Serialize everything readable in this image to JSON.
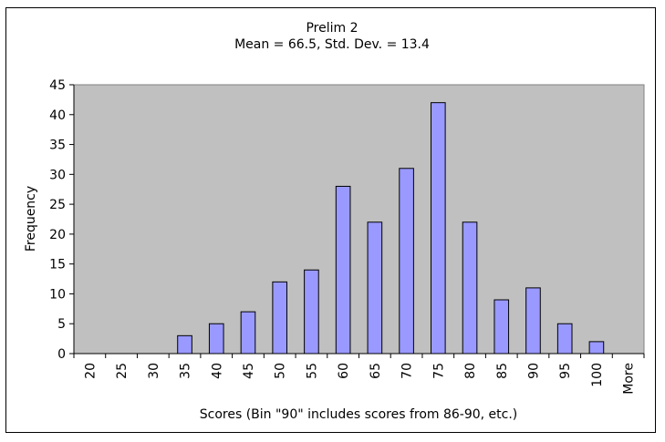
{
  "chart_data": {
    "type": "bar",
    "title": "Prelim 2",
    "subtitle": "Mean = 66.5, Std. Dev. = 13.4",
    "xlabel": "Scores (Bin \"90\" includes scores from 86-90, etc.)",
    "ylabel": "Frequency",
    "categories": [
      "20",
      "25",
      "30",
      "35",
      "40",
      "45",
      "50",
      "55",
      "60",
      "65",
      "70",
      "75",
      "80",
      "85",
      "90",
      "95",
      "100",
      "More"
    ],
    "values": [
      0,
      0,
      0,
      3,
      5,
      7,
      12,
      14,
      28,
      22,
      31,
      42,
      22,
      9,
      11,
      5,
      2,
      0
    ],
    "ylim": [
      0,
      45
    ],
    "yticks": [
      "0",
      "5",
      "10",
      "15",
      "20",
      "25",
      "30",
      "35",
      "40",
      "45"
    ],
    "grid": false,
    "legend": "none",
    "colors": {
      "plot_background": "#c0c0c0",
      "bar_fill": "#9999ff",
      "bar_stroke": "#000000"
    }
  }
}
